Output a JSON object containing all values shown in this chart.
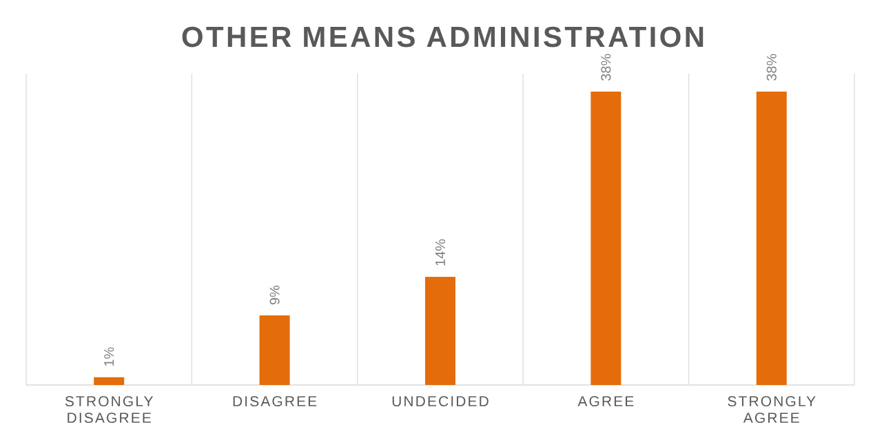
{
  "chart_data": {
    "type": "bar",
    "title": "OTHER MEANS ADMINISTRATION",
    "categories": [
      "STRONGLY DISAGREE",
      "DISAGREE",
      "UNDECIDED",
      "AGREE",
      "STRONGLY AGREE"
    ],
    "values": [
      1,
      9,
      14,
      38,
      38
    ],
    "value_labels": [
      "1%",
      "9%",
      "14%",
      "38%",
      "38%"
    ],
    "color": "#e46c0a",
    "grid": "x"
  }
}
